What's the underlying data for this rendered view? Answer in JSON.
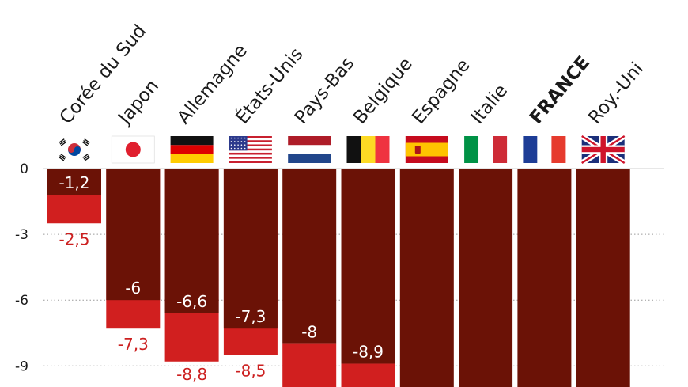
{
  "chart_data": {
    "type": "bar",
    "categories": [
      "Corée du Sud",
      "Japon",
      "Allemagne",
      "États-Unis",
      "Pays-Bas",
      "Belgique",
      "Espagne",
      "Italie",
      "FRANCE",
      "Roy.-Uni"
    ],
    "highlight_category": "FRANCE",
    "flags": [
      "korea-flag-icon",
      "japan-flag-icon",
      "germany-flag-icon",
      "usa-flag-icon",
      "netherlands-flag-icon",
      "belgium-flag-icon",
      "spain-flag-icon",
      "italy-flag-icon",
      "france-flag-icon",
      "uk-flag-icon"
    ],
    "series": [
      {
        "values": [
          -1.2,
          -6,
          -6.6,
          -7.3,
          -8,
          -8.9,
          null,
          null,
          null,
          null
        ],
        "labels": [
          "-1,2",
          "-6",
          "-6,6",
          "-7,3",
          "-8",
          "-8,9",
          "",
          "",
          "",
          ""
        ],
        "color": "#6b1206"
      },
      {
        "values": [
          -2.5,
          -7.3,
          -8.8,
          -8.5,
          null,
          null,
          null,
          null,
          null,
          null
        ],
        "labels": [
          "-2,5",
          "-7,3",
          "-8,8",
          "-8,5",
          "",
          "",
          "",
          "",
          "",
          ""
        ],
        "color": "#d11f1f"
      }
    ],
    "yticks": [
      0,
      -3,
      -6,
      -9
    ],
    "ytick_labels": [
      "0",
      "-3",
      "-6",
      "-9"
    ],
    "ylim": [
      -10,
      0
    ],
    "grid": true,
    "title": "",
    "xlabel": "",
    "ylabel": ""
  }
}
